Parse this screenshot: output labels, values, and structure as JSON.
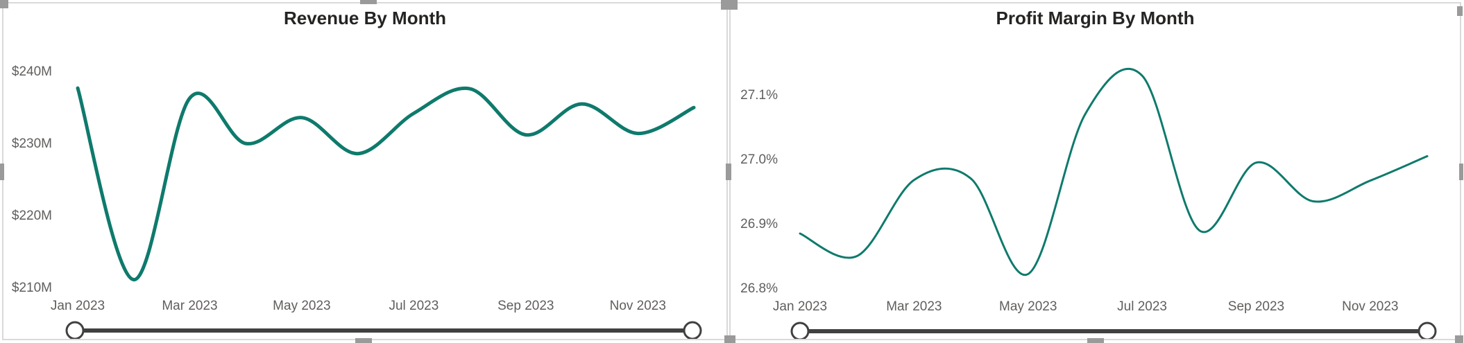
{
  "colors": {
    "line": "#0e7a6c",
    "slider": "#404040",
    "handle": "#9a9a9a"
  },
  "chart_data": [
    {
      "type": "line",
      "title": "Revenue By Month",
      "xlabel": "",
      "ylabel": "",
      "x": [
        "Jan 2023",
        "Feb 2023",
        "Mar 2023",
        "Apr 2023",
        "May 2023",
        "Jun 2023",
        "Jul 2023",
        "Aug 2023",
        "Sep 2023",
        "Oct 2023",
        "Nov 2023",
        "Dec 2023"
      ],
      "x_tick_labels": [
        "Jan 2023",
        "Mar 2023",
        "May 2023",
        "Jul 2023",
        "Sep 2023",
        "Nov 2023"
      ],
      "y_tick_labels": [
        "$240M",
        "$230M",
        "$220M",
        "$210M"
      ],
      "y_ticks": [
        240,
        230,
        220,
        210
      ],
      "unit": "$M",
      "ylim": [
        210,
        243
      ],
      "series": [
        {
          "values": [
            237.7,
            211.1,
            236.3,
            230.0,
            233.6,
            228.6,
            234.2,
            237.6,
            231.2,
            235.5,
            231.4,
            235.0
          ]
        }
      ],
      "grid": false,
      "legend": "none"
    },
    {
      "type": "line",
      "title": "Profit Margin By Month",
      "xlabel": "",
      "ylabel": "",
      "x": [
        "Jan 2023",
        "Feb 2023",
        "Mar 2023",
        "Apr 2023",
        "May 2023",
        "Jun 2023",
        "Jul 2023",
        "Aug 2023",
        "Sep 2023",
        "Oct 2023",
        "Nov 2023",
        "Dec 2023"
      ],
      "x_tick_labels": [
        "Jan 2023",
        "Mar 2023",
        "May 2023",
        "Jul 2023",
        "Sep 2023",
        "Nov 2023"
      ],
      "y_tick_labels": [
        "27.1%",
        "27.0%",
        "26.9%",
        "26.8%"
      ],
      "y_ticks": [
        27.1,
        27.0,
        26.9,
        26.8
      ],
      "unit": "%",
      "ylim": [
        26.8,
        27.17
      ],
      "series": [
        {
          "values": [
            26.885,
            26.85,
            26.968,
            26.97,
            26.822,
            27.07,
            27.13,
            26.89,
            26.995,
            26.935,
            26.967,
            27.005
          ]
        }
      ],
      "grid": false,
      "legend": "none"
    }
  ]
}
